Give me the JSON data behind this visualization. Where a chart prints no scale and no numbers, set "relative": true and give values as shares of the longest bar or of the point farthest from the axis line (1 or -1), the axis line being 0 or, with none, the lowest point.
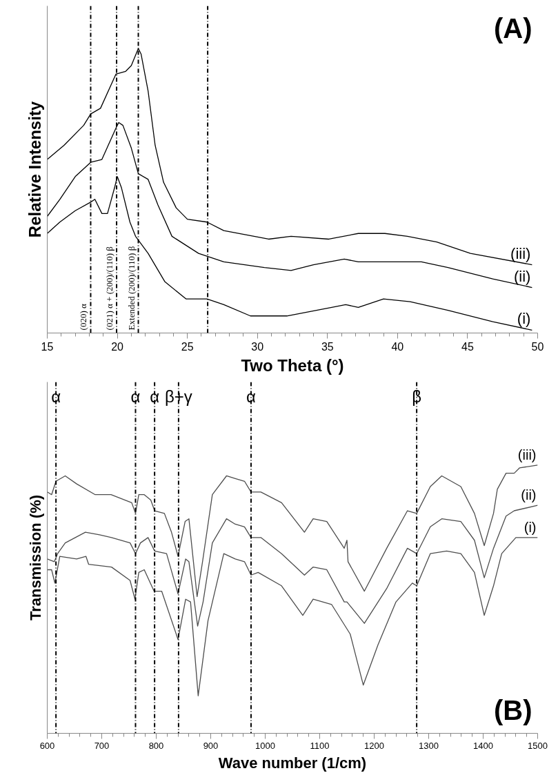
{
  "chart_data": [
    {
      "type": "line",
      "relative": true,
      "tick_labels": "x",
      "xlabel": "Two Theta (°)",
      "ylabel": "Relative Intensity",
      "xlim": [
        15,
        50
      ],
      "xticks": [
        15,
        20,
        25,
        30,
        35,
        40,
        45,
        50
      ],
      "annotations": [
        "(A)"
      ],
      "ref_lines": [
        {
          "axis": "x",
          "value": 18.1,
          "label": "(020) α",
          "line_style": "dashdot",
          "color": "#000000"
        },
        {
          "axis": "x",
          "value": 19.95,
          "label": "(021) α + (200)/(110) β",
          "line_style": "dashdot",
          "color": "#000000"
        },
        {
          "axis": "x",
          "value": 21.5,
          "label": "Extended (200)/(110) β",
          "line_style": "dashdot",
          "color": "#000000"
        },
        {
          "axis": "x",
          "value": 26.45,
          "line_style": "dashdot",
          "color": "#000000"
        }
      ],
      "series": [
        {
          "name": "(i)",
          "color": "#000000",
          "x": [
            15.0,
            15.9,
            17.0,
            18.1,
            18.4,
            18.9,
            19.3,
            19.8,
            20.0,
            20.3,
            20.9,
            21.3,
            22.2,
            23.4,
            24.9,
            26.4,
            27.6,
            29.5,
            32.1,
            35.3,
            36.3,
            37.2,
            39.0,
            40.9,
            43.6,
            46.8,
            49.6
          ],
          "values": [
            0.35,
            0.39,
            0.43,
            0.46,
            0.47,
            0.42,
            0.42,
            0.51,
            0.55,
            0.51,
            0.39,
            0.34,
            0.28,
            0.18,
            0.12,
            0.12,
            0.1,
            0.06,
            0.06,
            0.09,
            0.1,
            0.09,
            0.12,
            0.11,
            0.08,
            0.04,
            0.01
          ]
        },
        {
          "name": "(ii)",
          "color": "#000000",
          "x": [
            15.0,
            15.9,
            17.0,
            18.1,
            18.9,
            19.9,
            20.1,
            20.4,
            21.0,
            21.5,
            22.2,
            22.9,
            23.9,
            25.8,
            27.6,
            30.5,
            32.4,
            34.0,
            36.2,
            37.2,
            39.1,
            41.7,
            43.6,
            46.8,
            49.6
          ],
          "values": [
            0.41,
            0.47,
            0.55,
            0.6,
            0.61,
            0.72,
            0.74,
            0.73,
            0.65,
            0.56,
            0.54,
            0.45,
            0.34,
            0.28,
            0.25,
            0.23,
            0.22,
            0.24,
            0.26,
            0.25,
            0.25,
            0.25,
            0.23,
            0.19,
            0.16
          ]
        },
        {
          "name": "(iii)",
          "color": "#000000",
          "x": [
            15.0,
            16.2,
            17.6,
            18.1,
            18.8,
            19.9,
            20.6,
            21.0,
            21.5,
            21.7,
            22.2,
            22.7,
            23.3,
            24.2,
            25.0,
            26.4,
            27.6,
            30.8,
            32.4,
            35.1,
            37.2,
            39.1,
            40.7,
            42.8,
            45.2,
            49.6
          ],
          "values": [
            0.61,
            0.66,
            0.73,
            0.77,
            0.79,
            0.91,
            0.92,
            0.94,
            1.0,
            0.98,
            0.85,
            0.66,
            0.53,
            0.44,
            0.4,
            0.39,
            0.36,
            0.33,
            0.34,
            0.33,
            0.35,
            0.35,
            0.34,
            0.32,
            0.28,
            0.24
          ]
        }
      ]
    },
    {
      "type": "line",
      "relative": true,
      "tick_labels": "x",
      "xlabel": "Wave number (1/cm)",
      "ylabel": "Transmission (%)",
      "xlim": [
        600,
        1500
      ],
      "xticks": [
        600,
        700,
        800,
        900,
        1000,
        1100,
        1200,
        1300,
        1400,
        1500
      ],
      "annotations": [
        "(B)"
      ],
      "ref_lines": [
        {
          "axis": "x",
          "value": 616,
          "label": "α",
          "line_style": "dashdot",
          "color": "#000000"
        },
        {
          "axis": "x",
          "value": 762,
          "label": "α",
          "line_style": "dashdot",
          "color": "#000000"
        },
        {
          "axis": "x",
          "value": 797,
          "label": "α",
          "line_style": "dashdot",
          "color": "#000000"
        },
        {
          "axis": "x",
          "value": 841,
          "label": "β+γ",
          "line_style": "dashdot",
          "color": "#000000"
        },
        {
          "axis": "x",
          "value": 974,
          "label": "α",
          "line_style": "dashdot",
          "color": "#000000"
        },
        {
          "axis": "x",
          "value": 1278,
          "label": "β",
          "line_style": "dashdot",
          "color": "#000000"
        }
      ],
      "series": [
        {
          "name": "(i)",
          "color": "#4d4d4d",
          "x": [
            600,
            608,
            614,
            623,
            654,
            671,
            676,
            718,
            752,
            761,
            768,
            778,
            796,
            810,
            840,
            854,
            863,
            877,
            895,
            924,
            945,
            962,
            974,
            987,
            1030,
            1069,
            1088,
            1122,
            1156,
            1180,
            1207,
            1240,
            1270,
            1278,
            1303,
            1333,
            1359,
            1384,
            1402,
            1419,
            1434,
            1460,
            1500
          ],
          "values": [
            0.61,
            0.61,
            0.56,
            0.66,
            0.65,
            0.66,
            0.63,
            0.62,
            0.57,
            0.5,
            0.6,
            0.61,
            0.53,
            0.53,
            0.35,
            0.5,
            0.49,
            0.14,
            0.42,
            0.67,
            0.65,
            0.64,
            0.59,
            0.6,
            0.55,
            0.44,
            0.5,
            0.48,
            0.37,
            0.18,
            0.33,
            0.49,
            0.56,
            0.55,
            0.67,
            0.68,
            0.67,
            0.6,
            0.44,
            0.55,
            0.67,
            0.73,
            0.73
          ]
        },
        {
          "name": "(ii)",
          "color": "#4d4d4d",
          "x": [
            600,
            613,
            619,
            633,
            670,
            696,
            718,
            752,
            762,
            771,
            785,
            797,
            819,
            840,
            854,
            860,
            876,
            886,
            903,
            929,
            945,
            962,
            974,
            992,
            1030,
            1072,
            1088,
            1113,
            1145,
            1150,
            1182,
            1223,
            1261,
            1278,
            1303,
            1324,
            1359,
            1384,
            1402,
            1419,
            1442,
            1457,
            1500
          ],
          "values": [
            0.65,
            0.64,
            0.67,
            0.71,
            0.75,
            0.74,
            0.73,
            0.71,
            0.67,
            0.71,
            0.73,
            0.68,
            0.67,
            0.52,
            0.65,
            0.64,
            0.4,
            0.49,
            0.71,
            0.8,
            0.78,
            0.77,
            0.73,
            0.73,
            0.67,
            0.59,
            0.62,
            0.61,
            0.49,
            0.49,
            0.41,
            0.54,
            0.69,
            0.67,
            0.77,
            0.8,
            0.79,
            0.72,
            0.58,
            0.69,
            0.81,
            0.83,
            0.85
          ]
        },
        {
          "name": "(iii)",
          "color": "#4d4d4d",
          "x": [
            600,
            608,
            616,
            633,
            654,
            688,
            717,
            742,
            755,
            762,
            768,
            778,
            790,
            797,
            815,
            828,
            840,
            853,
            860,
            875,
            885,
            903,
            929,
            945,
            962,
            974,
            992,
            1030,
            1072,
            1088,
            1113,
            1145,
            1150,
            1152,
            1182,
            1223,
            1261,
            1278,
            1303,
            1324,
            1359,
            1384,
            1402,
            1419,
            1426,
            1442,
            1457,
            1467,
            1500
          ],
          "values": [
            0.9,
            0.89,
            0.94,
            0.96,
            0.93,
            0.89,
            0.89,
            0.87,
            0.86,
            0.82,
            0.89,
            0.89,
            0.87,
            0.83,
            0.82,
            0.75,
            0.66,
            0.79,
            0.8,
            0.51,
            0.64,
            0.89,
            0.96,
            0.95,
            0.94,
            0.9,
            0.9,
            0.86,
            0.75,
            0.8,
            0.79,
            0.69,
            0.72,
            0.64,
            0.53,
            0.69,
            0.83,
            0.82,
            0.92,
            0.96,
            0.92,
            0.82,
            0.7,
            0.82,
            0.91,
            0.97,
            0.97,
            0.99,
            1.0
          ]
        }
      ]
    }
  ]
}
